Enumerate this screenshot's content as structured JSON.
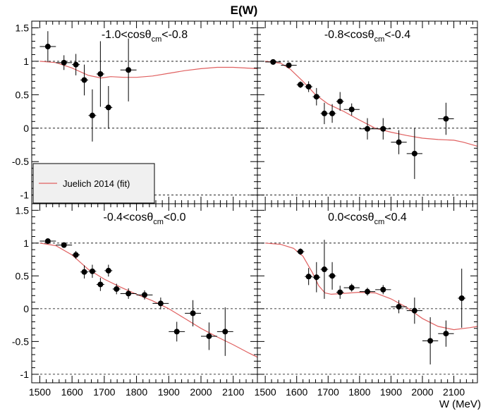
{
  "figure_title": "E(W)",
  "x_axis_title": "W (MeV)",
  "legend": {
    "model_label": "Juelich 2014 (fit)",
    "model_color": "#e06060"
  },
  "colors": {
    "data": "#000000",
    "model": "#e06060",
    "frame": "#000000",
    "dashed": "#000000"
  },
  "chart_data": [
    {
      "type": "scatter",
      "panel_label": {
        "pre": "-1.0<cos",
        "theta": "θ",
        "sub": "cm",
        "post": "<-0.8"
      },
      "xlim": [
        1475,
        2175
      ],
      "ylim": [
        -1.13,
        1.6
      ],
      "x_ticks": [],
      "y_ticks": [
        "-1",
        "-0.5",
        "0",
        "0.5",
        "1",
        "1.5"
      ],
      "reference_lines": [
        1,
        0,
        -1
      ],
      "points": [
        {
          "x": 1525,
          "y": 1.22,
          "xerr": 25,
          "yerr": 0.23
        },
        {
          "x": 1575,
          "y": 0.98,
          "xerr": 25,
          "yerr": 0.11
        },
        {
          "x": 1612,
          "y": 0.95,
          "xerr": 12,
          "yerr": 0.16
        },
        {
          "x": 1638,
          "y": 0.72,
          "xerr": 12,
          "yerr": 0.23
        },
        {
          "x": 1663,
          "y": 0.19,
          "xerr": 12,
          "yerr": 0.39
        },
        {
          "x": 1688,
          "y": 0.81,
          "xerr": 12,
          "yerr": 0.49
        },
        {
          "x": 1713,
          "y": 0.31,
          "xerr": 12,
          "yerr": 0.32
        },
        {
          "x": 1775,
          "y": 0.87,
          "xerr": 25,
          "yerr": 0.47
        }
      ],
      "model": {
        "x": [
          1500,
          1550,
          1600,
          1650,
          1690,
          1720,
          1760,
          1800,
          1850,
          1900,
          1950,
          2000,
          2050,
          2100,
          2175
        ],
        "y": [
          1.0,
          0.98,
          0.9,
          0.79,
          0.75,
          0.77,
          0.76,
          0.76,
          0.78,
          0.82,
          0.86,
          0.89,
          0.91,
          0.91,
          0.89
        ]
      }
    },
    {
      "type": "scatter",
      "panel_label": {
        "pre": "-0.8<cos",
        "theta": "θ",
        "sub": "cm",
        "post": "<-0.4"
      },
      "xlim": [
        1475,
        2175
      ],
      "ylim": [
        -1.13,
        1.6
      ],
      "x_ticks": [],
      "y_ticks": [],
      "reference_lines": [
        1,
        0,
        -1
      ],
      "points": [
        {
          "x": 1525,
          "y": 0.99,
          "xerr": 25,
          "yerr": 0.04
        },
        {
          "x": 1575,
          "y": 0.94,
          "xerr": 25,
          "yerr": 0.03
        },
        {
          "x": 1612,
          "y": 0.65,
          "xerr": 12,
          "yerr": 0.05
        },
        {
          "x": 1638,
          "y": 0.62,
          "xerr": 12,
          "yerr": 0.08
        },
        {
          "x": 1663,
          "y": 0.47,
          "xerr": 12,
          "yerr": 0.13
        },
        {
          "x": 1688,
          "y": 0.22,
          "xerr": 12,
          "yerr": 0.16
        },
        {
          "x": 1713,
          "y": 0.22,
          "xerr": 12,
          "yerr": 0.14
        },
        {
          "x": 1738,
          "y": 0.4,
          "xerr": 12,
          "yerr": 0.14
        },
        {
          "x": 1775,
          "y": 0.28,
          "xerr": 25,
          "yerr": 0.09
        },
        {
          "x": 1825,
          "y": -0.01,
          "xerr": 25,
          "yerr": 0.16
        },
        {
          "x": 1875,
          "y": -0.01,
          "xerr": 25,
          "yerr": 0.16
        },
        {
          "x": 1925,
          "y": -0.21,
          "xerr": 25,
          "yerr": 0.18
        },
        {
          "x": 1975,
          "y": -0.38,
          "xerr": 25,
          "yerr": 0.38
        },
        {
          "x": 2075,
          "y": 0.14,
          "xerr": 25,
          "yerr": 0.24
        }
      ],
      "model": {
        "x": [
          1500,
          1550,
          1580,
          1620,
          1660,
          1700,
          1750,
          1800,
          1850,
          1900,
          1950,
          2000,
          2050,
          2100,
          2130,
          2175
        ],
        "y": [
          1.0,
          0.97,
          0.88,
          0.7,
          0.5,
          0.36,
          0.25,
          0.12,
          0.0,
          -0.06,
          -0.11,
          -0.15,
          -0.17,
          -0.18,
          -0.21,
          -0.27
        ]
      }
    },
    {
      "type": "scatter",
      "panel_label": {
        "pre": "-0.4<cos",
        "theta": "θ",
        "sub": "cm",
        "post": "<0.0"
      },
      "xlim": [
        1475,
        2175
      ],
      "ylim": [
        -1.13,
        1.6
      ],
      "x_ticks": [
        "1500",
        "1600",
        "1700",
        "1800",
        "1900",
        "2000",
        "2100"
      ],
      "y_ticks": [
        "-1",
        "-0.5",
        "0",
        "0.5",
        "1",
        "1.5"
      ],
      "reference_lines": [
        1,
        0,
        -1
      ],
      "points": [
        {
          "x": 1525,
          "y": 1.03,
          "xerr": 25,
          "yerr": 0.03
        },
        {
          "x": 1575,
          "y": 0.97,
          "xerr": 25,
          "yerr": 0.03
        },
        {
          "x": 1612,
          "y": 0.82,
          "xerr": 12,
          "yerr": 0.06
        },
        {
          "x": 1638,
          "y": 0.56,
          "xerr": 12,
          "yerr": 0.1
        },
        {
          "x": 1663,
          "y": 0.57,
          "xerr": 12,
          "yerr": 0.1
        },
        {
          "x": 1688,
          "y": 0.37,
          "xerr": 12,
          "yerr": 0.1
        },
        {
          "x": 1713,
          "y": 0.58,
          "xerr": 12,
          "yerr": 0.09
        },
        {
          "x": 1738,
          "y": 0.3,
          "xerr": 12,
          "yerr": 0.08
        },
        {
          "x": 1775,
          "y": 0.23,
          "xerr": 25,
          "yerr": 0.08
        },
        {
          "x": 1825,
          "y": 0.21,
          "xerr": 25,
          "yerr": 0.07
        },
        {
          "x": 1875,
          "y": 0.08,
          "xerr": 25,
          "yerr": 0.09
        },
        {
          "x": 1925,
          "y": -0.35,
          "xerr": 25,
          "yerr": 0.15
        },
        {
          "x": 1975,
          "y": -0.07,
          "xerr": 25,
          "yerr": 0.2
        },
        {
          "x": 2025,
          "y": -0.42,
          "xerr": 25,
          "yerr": 0.21
        },
        {
          "x": 2075,
          "y": -0.35,
          "xerr": 25,
          "yerr": 0.37
        }
      ],
      "model": {
        "x": [
          1500,
          1550,
          1600,
          1650,
          1700,
          1750,
          1800,
          1850,
          1900,
          1950,
          2000,
          2050,
          2100,
          2150,
          2175
        ],
        "y": [
          1.0,
          0.96,
          0.82,
          0.6,
          0.45,
          0.33,
          0.22,
          0.12,
          0.0,
          -0.15,
          -0.3,
          -0.43,
          -0.55,
          -0.68,
          -0.74
        ]
      }
    },
    {
      "type": "scatter",
      "panel_label": {
        "pre": "0.0<cos",
        "theta": "θ",
        "sub": "cm",
        "post": "<0.4"
      },
      "xlim": [
        1475,
        2175
      ],
      "ylim": [
        -1.13,
        1.6
      ],
      "x_ticks": [
        "1500",
        "1600",
        "1700",
        "1800",
        "1900",
        "2000",
        "2100"
      ],
      "y_ticks": [],
      "reference_lines": [
        1,
        0,
        -1
      ],
      "points": [
        {
          "x": 1612,
          "y": 0.87,
          "xerr": 12,
          "yerr": 0.05
        },
        {
          "x": 1638,
          "y": 0.49,
          "xerr": 12,
          "yerr": 0.13
        },
        {
          "x": 1663,
          "y": 0.48,
          "xerr": 12,
          "yerr": 0.23
        },
        {
          "x": 1688,
          "y": 0.6,
          "xerr": 12,
          "yerr": 0.45
        },
        {
          "x": 1713,
          "y": 0.5,
          "xerr": 12,
          "yerr": 0.21
        },
        {
          "x": 1738,
          "y": 0.25,
          "xerr": 12,
          "yerr": 0.1
        },
        {
          "x": 1775,
          "y": 0.32,
          "xerr": 25,
          "yerr": 0.06
        },
        {
          "x": 1825,
          "y": 0.26,
          "xerr": 25,
          "yerr": 0.06
        },
        {
          "x": 1875,
          "y": 0.29,
          "xerr": 25,
          "yerr": 0.07
        },
        {
          "x": 1925,
          "y": 0.03,
          "xerr": 25,
          "yerr": 0.1
        },
        {
          "x": 1975,
          "y": -0.03,
          "xerr": 25,
          "yerr": 0.2
        },
        {
          "x": 2025,
          "y": -0.49,
          "xerr": 25,
          "yerr": 0.36
        },
        {
          "x": 2075,
          "y": -0.38,
          "xerr": 25,
          "yerr": 0.2
        },
        {
          "x": 2125,
          "y": 0.16,
          "xerr": 12,
          "yerr": 0.45
        }
      ],
      "model": {
        "x": [
          1500,
          1550,
          1590,
          1620,
          1650,
          1670,
          1690,
          1710,
          1740,
          1800,
          1850,
          1900,
          1950,
          2000,
          2050,
          2100,
          2150,
          2175
        ],
        "y": [
          1.0,
          0.98,
          0.92,
          0.8,
          0.55,
          0.35,
          0.24,
          0.22,
          0.23,
          0.25,
          0.24,
          0.15,
          0.02,
          -0.15,
          -0.27,
          -0.32,
          -0.29,
          -0.27
        ]
      }
    }
  ]
}
